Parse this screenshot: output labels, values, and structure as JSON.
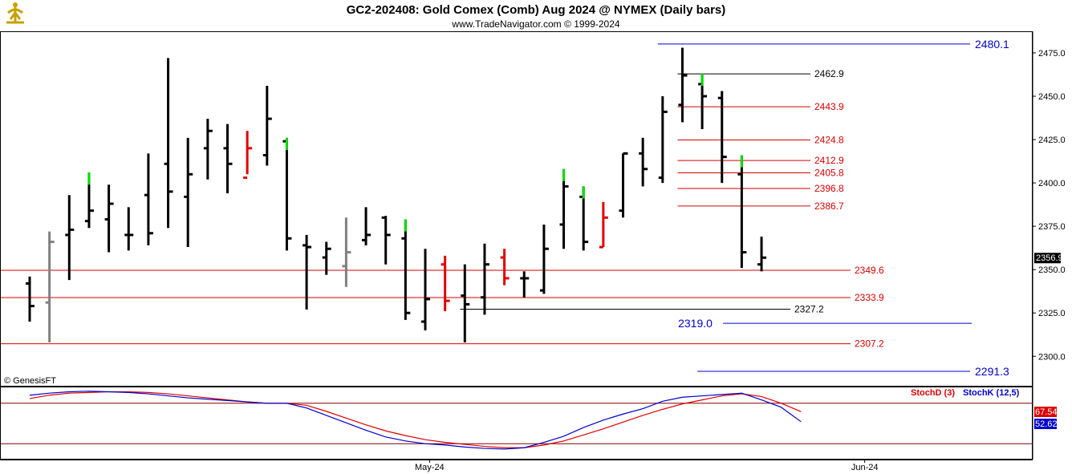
{
  "header": {
    "title": "GC2-202408:  Gold Comex (Comb) Aug 2024 @ NYMEX  (Daily bars)",
    "subtitle": "www.TradeNavigator.com © 1999-2024"
  },
  "watermark": "© GenesisFT",
  "colors": {
    "up_bar": "#000000",
    "gray_bar": "#808080",
    "red_bar": "#e00000",
    "green_mark": "#00dd00",
    "level_red": "#d40000",
    "level_blue": "#0000cc",
    "stoch_d": "#dd0000",
    "stoch_k": "#0000cc"
  },
  "chart_data": [
    {
      "type": "ohlc",
      "title": "GC2-202408:  Gold Comex (Comb) Aug 2024 @ NYMEX  (Daily bars)",
      "ylim": [
        2283,
        2487
      ],
      "y_ticks": [
        2300.0,
        2325.0,
        2350.0,
        2375.0,
        2400.0,
        2425.0,
        2450.0,
        2475.0
      ],
      "x_ticks": [
        {
          "label": "May-24",
          "index": 19
        },
        {
          "label": "Jun-24",
          "index": 41
        }
      ],
      "last_price_label": "2356.9",
      "last_price": 2356.9,
      "bars": [
        {
          "h": 2346,
          "l": 2320,
          "o": 2342,
          "c": 2329,
          "color": "black"
        },
        {
          "h": 2372,
          "l": 2308,
          "o": 2331,
          "c": 2366,
          "color": "gray"
        },
        {
          "h": 2393,
          "l": 2344,
          "o": 2370,
          "c": 2373,
          "color": "black"
        },
        {
          "h": 2406,
          "l": 2374,
          "o": 2378,
          "c": 2384,
          "color": "black",
          "mark": "green"
        },
        {
          "h": 2399,
          "l": 2360,
          "o": 2379,
          "c": 2388,
          "color": "black"
        },
        {
          "h": 2386,
          "l": 2361,
          "o": 2370,
          "c": 2370,
          "color": "black"
        },
        {
          "h": 2417,
          "l": 2364,
          "o": 2393,
          "c": 2371,
          "color": "black"
        },
        {
          "h": 2472,
          "l": 2374,
          "o": 2411,
          "c": 2395,
          "color": "black"
        },
        {
          "h": 2426,
          "l": 2363,
          "o": 2392,
          "c": 2405,
          "color": "black"
        },
        {
          "h": 2437,
          "l": 2402,
          "o": 2420,
          "c": 2430,
          "color": "black"
        },
        {
          "h": 2434,
          "l": 2394,
          "o": 2420,
          "c": 2411,
          "color": "black"
        },
        {
          "h": 2430,
          "l": 2405,
          "o": 2403,
          "c": 2420,
          "color": "red"
        },
        {
          "h": 2456,
          "l": 2410,
          "o": 2416,
          "c": 2437,
          "color": "black"
        },
        {
          "h": 2426,
          "l": 2361,
          "o": 2424,
          "c": 2368,
          "color": "black",
          "mark": "green"
        },
        {
          "h": 2370,
          "l": 2327,
          "o": 2364,
          "c": 2363,
          "color": "black"
        },
        {
          "h": 2366,
          "l": 2347,
          "o": 2357,
          "c": 2362,
          "color": "black"
        },
        {
          "h": 2380,
          "l": 2340,
          "o": 2352,
          "c": 2360,
          "color": "gray"
        },
        {
          "h": 2386,
          "l": 2364,
          "o": 2367,
          "c": 2370,
          "color": "black"
        },
        {
          "h": 2381,
          "l": 2353,
          "o": 2380,
          "c": 2370,
          "color": "black"
        },
        {
          "h": 2379,
          "l": 2321,
          "o": 2368,
          "c": 2325,
          "color": "black",
          "mark": "green"
        },
        {
          "h": 2362,
          "l": 2315,
          "o": 2320,
          "c": 2333,
          "color": "black"
        },
        {
          "h": 2358,
          "l": 2326,
          "o": 2353,
          "c": 2332,
          "color": "red"
        },
        {
          "h": 2353,
          "l": 2308,
          "o": 2335,
          "c": 2330,
          "color": "black"
        },
        {
          "h": 2365,
          "l": 2324,
          "o": 2334,
          "c": 2353,
          "color": "black"
        },
        {
          "h": 2362,
          "l": 2341,
          "o": 2357,
          "c": 2345,
          "color": "red"
        },
        {
          "h": 2349,
          "l": 2334,
          "o": 2345,
          "c": 2345,
          "color": "black"
        },
        {
          "h": 2376,
          "l": 2336,
          "o": 2338,
          "c": 2362,
          "color": "black"
        },
        {
          "h": 2408,
          "l": 2362,
          "o": 2376,
          "c": 2398,
          "color": "black",
          "mark": "green"
        },
        {
          "h": 2398,
          "l": 2361,
          "o": 2392,
          "c": 2366,
          "color": "black",
          "mark": "green"
        },
        {
          "h": 2389,
          "l": 2363,
          "o": 2363,
          "c": 2380,
          "color": "red"
        },
        {
          "h": 2417,
          "l": 2380,
          "o": 2384,
          "c": 2417,
          "color": "black"
        },
        {
          "h": 2426,
          "l": 2398,
          "o": 2417,
          "c": 2408,
          "color": "black"
        },
        {
          "h": 2450,
          "l": 2400,
          "o": 2403,
          "c": 2441,
          "color": "black"
        },
        {
          "h": 2478,
          "l": 2435,
          "o": 2445,
          "c": 2462,
          "color": "black"
        },
        {
          "h": 2463,
          "l": 2431,
          "o": 2457,
          "c": 2450,
          "color": "black",
          "mark": "green"
        },
        {
          "h": 2453,
          "l": 2400,
          "o": 2449,
          "c": 2415,
          "color": "black"
        },
        {
          "h": 2416,
          "l": 2351,
          "o": 2405,
          "c": 2360,
          "color": "black",
          "mark": "green"
        },
        {
          "h": 2369,
          "l": 2349,
          "o": 2353,
          "c": 2356.9,
          "color": "black"
        }
      ],
      "levels": [
        {
          "value": 2480.1,
          "label": "2480.1",
          "color": "blue",
          "style": "big",
          "from_index": 32,
          "to_right": 1209
        },
        {
          "value": 2462.9,
          "label": "2462.9",
          "color": "black",
          "from_index": 33,
          "to_right": 1010
        },
        {
          "value": 2443.9,
          "label": "2443.9",
          "color": "red",
          "from_index": 33,
          "to_right": 1010
        },
        {
          "value": 2424.8,
          "label": "2424.8",
          "color": "red",
          "from_index": 33,
          "to_right": 1010
        },
        {
          "value": 2412.9,
          "label": "2412.9",
          "color": "red",
          "from_index": 33,
          "to_right": 1010
        },
        {
          "value": 2405.8,
          "label": "2405.8",
          "color": "red",
          "from_index": 33,
          "to_right": 1010
        },
        {
          "value": 2396.8,
          "label": "2396.8",
          "color": "red",
          "from_index": 33,
          "to_right": 1010
        },
        {
          "value": 2386.7,
          "label": "2386.7",
          "color": "red",
          "from_index": 33,
          "to_right": 1010
        },
        {
          "value": 2349.6,
          "label": "2349.6",
          "color": "red",
          "from_index": -1,
          "to_right": 1060
        },
        {
          "value": 2333.9,
          "label": "2333.9",
          "color": "red",
          "from_index": -1,
          "to_right": 1060
        },
        {
          "value": 2327.2,
          "label": "2327.2",
          "color": "black",
          "from_index": 22,
          "to_right": 985
        },
        {
          "value": 2319.0,
          "label": "2319.0",
          "color": "blue",
          "style": "big-left",
          "from_index": 34,
          "to_right": 1211
        },
        {
          "value": 2307.2,
          "label": "2307.2",
          "color": "red",
          "from_index": -1,
          "to_right": 1060
        },
        {
          "value": 2291.3,
          "label": "2291.3",
          "color": "blue",
          "style": "big",
          "from_index": 34,
          "to_right": 1209
        }
      ]
    },
    {
      "type": "line",
      "title": "",
      "legend": [
        {
          "label": "StochD (3)",
          "color": "red"
        },
        {
          "label": "StochK (12,5)",
          "color": "blue"
        }
      ],
      "ylim": [
        0,
        100
      ],
      "reference_lines": [
        80,
        20
      ],
      "last_values": {
        "stochd": "67.54",
        "stochk": "52.62"
      },
      "series": [
        {
          "name": "StochD (3)",
          "color": "red",
          "values": [
            87,
            92,
            95,
            96,
            97,
            97,
            96,
            94,
            91,
            88,
            85,
            82,
            80,
            80,
            77,
            68,
            58,
            48,
            39,
            32,
            26,
            22,
            19,
            16,
            14,
            14,
            18,
            24,
            33,
            42,
            52,
            62,
            71,
            79,
            85,
            91,
            94,
            90,
            80,
            67.54
          ]
        },
        {
          "name": "StochK (12,5)",
          "color": "blue",
          "values": [
            92,
            95,
            97,
            98,
            97,
            96,
            94,
            91,
            88,
            86,
            84,
            82,
            80,
            80,
            73,
            62,
            51,
            40,
            30,
            24,
            20,
            18,
            15,
            13,
            12,
            14,
            22,
            31,
            44,
            55,
            64,
            72,
            83,
            89,
            91,
            93,
            95,
            85,
            74,
            52.62
          ]
        }
      ]
    }
  ]
}
